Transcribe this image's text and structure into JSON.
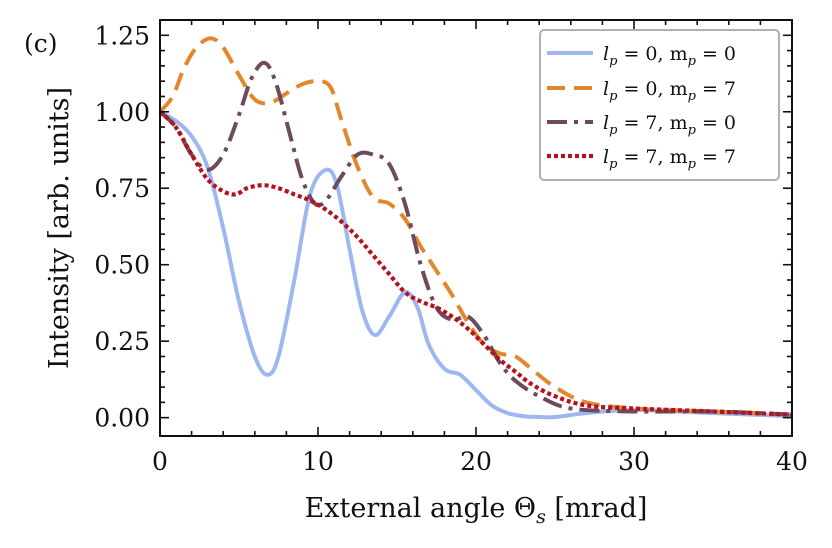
{
  "panel_label": "(c)",
  "chart_data": {
    "type": "line",
    "title": "",
    "xlabel": "External angle Θs [mrad]",
    "ylabel": "Intensity [arb. units]",
    "xlim": [
      0,
      40
    ],
    "ylim": [
      -0.06,
      1.3
    ],
    "xticks": [
      0,
      10,
      20,
      30,
      40
    ],
    "xtick_labels": [
      "0",
      "10",
      "20",
      "30",
      "40"
    ],
    "yticks": [
      0.0,
      0.25,
      0.5,
      0.75,
      1.0,
      1.25
    ],
    "ytick_labels": [
      "0.00",
      "0.25",
      "0.50",
      "0.75",
      "1.00",
      "1.25"
    ],
    "grid": false,
    "legend_position": "top-right",
    "series": [
      {
        "name": "l_p = 0, m_p = 0",
        "color": "#9fb7f0",
        "style": "solid",
        "x": [
          0,
          1,
          2,
          3,
          4,
          5,
          6,
          6.8,
          7.5,
          8.5,
          9.5,
          10.5,
          11.2,
          12,
          12.8,
          13.6,
          14.5,
          15.5,
          16.3,
          17,
          18,
          19,
          20,
          21,
          22,
          23,
          24,
          25,
          27,
          30,
          35,
          40
        ],
        "y": [
          1.0,
          0.97,
          0.92,
          0.82,
          0.62,
          0.38,
          0.2,
          0.14,
          0.2,
          0.45,
          0.73,
          0.81,
          0.76,
          0.55,
          0.35,
          0.27,
          0.33,
          0.41,
          0.36,
          0.24,
          0.16,
          0.14,
          0.09,
          0.04,
          0.015,
          0.005,
          0.002,
          0.002,
          0.015,
          0.025,
          0.015,
          0.005
        ]
      },
      {
        "name": "l_p = 0, m_p = 7",
        "color": "#e3872d",
        "style": "dashed",
        "x": [
          0,
          0.8,
          1.5,
          2.3,
          3.2,
          4,
          5,
          6,
          7,
          8,
          9,
          10,
          10.8,
          11.5,
          12.5,
          13.5,
          14.5,
          15.5,
          16.5,
          17.5,
          18.5,
          19.5,
          20.5,
          21.5,
          22.5,
          23.5,
          25,
          27,
          30,
          35,
          40
        ],
        "y": [
          1.0,
          1.05,
          1.14,
          1.21,
          1.24,
          1.21,
          1.12,
          1.04,
          1.03,
          1.06,
          1.09,
          1.1,
          1.08,
          0.97,
          0.82,
          0.72,
          0.7,
          0.65,
          0.56,
          0.48,
          0.4,
          0.31,
          0.24,
          0.21,
          0.2,
          0.16,
          0.1,
          0.05,
          0.03,
          0.02,
          0.01
        ]
      },
      {
        "name": "l_p = 7, m_p = 0",
        "color": "#6e4a5c",
        "style": "dashdot",
        "x": [
          0,
          1,
          2,
          3,
          4,
          5,
          5.8,
          6.6,
          7.3,
          8.2,
          9,
          9.8,
          10.5,
          11.5,
          12.5,
          13.5,
          14.5,
          15.5,
          16.5,
          17.5,
          18.5,
          19.5,
          20.5,
          21.5,
          22.5,
          24,
          26,
          30,
          35,
          40
        ],
        "y": [
          1.0,
          0.95,
          0.86,
          0.81,
          0.86,
          0.99,
          1.11,
          1.16,
          1.1,
          0.93,
          0.78,
          0.7,
          0.71,
          0.79,
          0.86,
          0.86,
          0.83,
          0.7,
          0.5,
          0.36,
          0.32,
          0.33,
          0.27,
          0.18,
          0.12,
          0.07,
          0.03,
          0.02,
          0.02,
          0.01
        ]
      },
      {
        "name": "l_p = 7, m_p = 7",
        "color": "#b5121b",
        "style": "dotted",
        "x": [
          0,
          1,
          2,
          3,
          4,
          4.8,
          5.5,
          6.5,
          7.5,
          8.5,
          9.5,
          10.5,
          11.5,
          12.5,
          13.5,
          14.5,
          15.5,
          16.5,
          17.5,
          18.5,
          19.5,
          20.5,
          21.5,
          22.5,
          23.5,
          25,
          27,
          30,
          35,
          40
        ],
        "y": [
          1.0,
          0.95,
          0.86,
          0.78,
          0.74,
          0.73,
          0.75,
          0.76,
          0.75,
          0.73,
          0.71,
          0.68,
          0.64,
          0.59,
          0.53,
          0.47,
          0.41,
          0.38,
          0.36,
          0.33,
          0.29,
          0.24,
          0.19,
          0.15,
          0.11,
          0.07,
          0.04,
          0.03,
          0.02,
          0.01
        ]
      }
    ]
  },
  "legend_labels": {
    "s0": {
      "l": "l",
      "lsub": "p",
      "leq": " = 0, m",
      "msub": "p",
      "meq": " = 0"
    },
    "s1": {
      "l": "l",
      "lsub": "p",
      "leq": " = 0, m",
      "msub": "p",
      "meq": " = 7"
    },
    "s2": {
      "l": "l",
      "lsub": "p",
      "leq": " = 7, m",
      "msub": "p",
      "meq": " = 0"
    },
    "s3": {
      "l": "l",
      "lsub": "p",
      "leq": " = 7, m",
      "msub": "p",
      "meq": " = 7"
    }
  },
  "axis_text": {
    "ylabel": "Intensity [arb. units]",
    "xlabel_pre": "External angle Θ",
    "xlabel_sub": "s",
    "xlabel_post": " [mrad]"
  }
}
